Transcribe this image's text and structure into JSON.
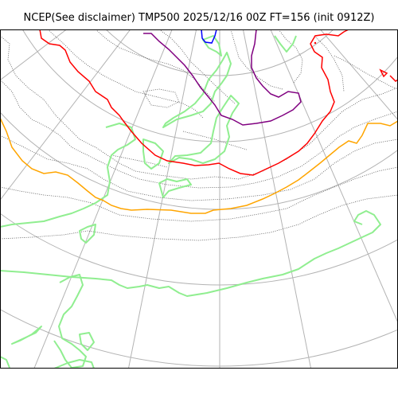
{
  "map": {
    "title": "NCEP(See disclaimer) TMP500 2025/12/16 00Z FT=156 (init 0912Z)",
    "projection": "polar-stereographic",
    "field": "TMP500",
    "valid": "2025/12/16 00Z",
    "forecast_time": "FT=156",
    "init": "0912Z",
    "colors": {
      "background": "#ffffff",
      "frame": "#000000",
      "graticule": "#b3b3b3",
      "coastline": "#90ee90",
      "contour_dotted": "#555555",
      "isotherm_orange": "#ffa500",
      "isotherm_red": "#ff0000",
      "isotherm_purple": "#800080",
      "isotherm_blue": "#0000ff"
    },
    "layers": [
      "graticule",
      "coastlines",
      "dotted-temperature-contours",
      "orange-isotherm",
      "red-isotherm",
      "purple-isotherm",
      "blue-isotherm"
    ]
  }
}
